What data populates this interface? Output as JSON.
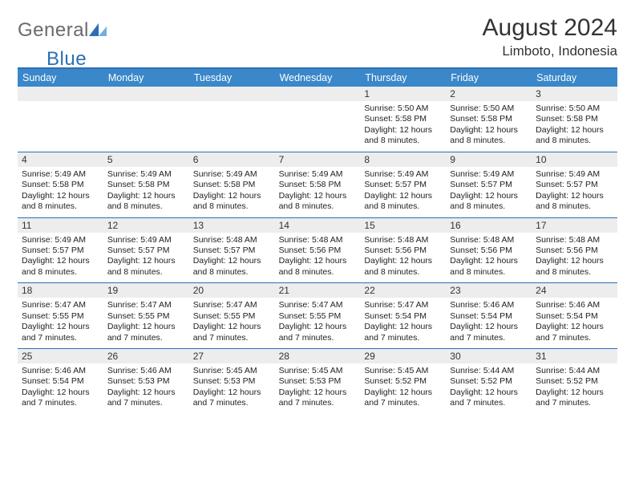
{
  "logo": {
    "general": "General",
    "blue": "Blue"
  },
  "title": "August 2024",
  "location": "Limboto, Indonesia",
  "colors": {
    "header_bg": "#3a87c9",
    "header_border": "#2c6fb5",
    "daynum_bg": "#ededed",
    "text": "#222222",
    "logo_gray": "#6a6a6a",
    "logo_blue": "#2c6fb5"
  },
  "day_labels": [
    "Sunday",
    "Monday",
    "Tuesday",
    "Wednesday",
    "Thursday",
    "Friday",
    "Saturday"
  ],
  "weeks": [
    {
      "nums": [
        "",
        "",
        "",
        "",
        "1",
        "2",
        "3"
      ],
      "sunrise": [
        "",
        "",
        "",
        "",
        "Sunrise: 5:50 AM",
        "Sunrise: 5:50 AM",
        "Sunrise: 5:50 AM"
      ],
      "sunset": [
        "",
        "",
        "",
        "",
        "Sunset: 5:58 PM",
        "Sunset: 5:58 PM",
        "Sunset: 5:58 PM"
      ],
      "daylight": [
        "",
        "",
        "",
        "",
        "Daylight: 12 hours and 8 minutes.",
        "Daylight: 12 hours and 8 minutes.",
        "Daylight: 12 hours and 8 minutes."
      ]
    },
    {
      "nums": [
        "4",
        "5",
        "6",
        "7",
        "8",
        "9",
        "10"
      ],
      "sunrise": [
        "Sunrise: 5:49 AM",
        "Sunrise: 5:49 AM",
        "Sunrise: 5:49 AM",
        "Sunrise: 5:49 AM",
        "Sunrise: 5:49 AM",
        "Sunrise: 5:49 AM",
        "Sunrise: 5:49 AM"
      ],
      "sunset": [
        "Sunset: 5:58 PM",
        "Sunset: 5:58 PM",
        "Sunset: 5:58 PM",
        "Sunset: 5:58 PM",
        "Sunset: 5:57 PM",
        "Sunset: 5:57 PM",
        "Sunset: 5:57 PM"
      ],
      "daylight": [
        "Daylight: 12 hours and 8 minutes.",
        "Daylight: 12 hours and 8 minutes.",
        "Daylight: 12 hours and 8 minutes.",
        "Daylight: 12 hours and 8 minutes.",
        "Daylight: 12 hours and 8 minutes.",
        "Daylight: 12 hours and 8 minutes.",
        "Daylight: 12 hours and 8 minutes."
      ]
    },
    {
      "nums": [
        "11",
        "12",
        "13",
        "14",
        "15",
        "16",
        "17"
      ],
      "sunrise": [
        "Sunrise: 5:49 AM",
        "Sunrise: 5:49 AM",
        "Sunrise: 5:48 AM",
        "Sunrise: 5:48 AM",
        "Sunrise: 5:48 AM",
        "Sunrise: 5:48 AM",
        "Sunrise: 5:48 AM"
      ],
      "sunset": [
        "Sunset: 5:57 PM",
        "Sunset: 5:57 PM",
        "Sunset: 5:57 PM",
        "Sunset: 5:56 PM",
        "Sunset: 5:56 PM",
        "Sunset: 5:56 PM",
        "Sunset: 5:56 PM"
      ],
      "daylight": [
        "Daylight: 12 hours and 8 minutes.",
        "Daylight: 12 hours and 8 minutes.",
        "Daylight: 12 hours and 8 minutes.",
        "Daylight: 12 hours and 8 minutes.",
        "Daylight: 12 hours and 8 minutes.",
        "Daylight: 12 hours and 8 minutes.",
        "Daylight: 12 hours and 8 minutes."
      ]
    },
    {
      "nums": [
        "18",
        "19",
        "20",
        "21",
        "22",
        "23",
        "24"
      ],
      "sunrise": [
        "Sunrise: 5:47 AM",
        "Sunrise: 5:47 AM",
        "Sunrise: 5:47 AM",
        "Sunrise: 5:47 AM",
        "Sunrise: 5:47 AM",
        "Sunrise: 5:46 AM",
        "Sunrise: 5:46 AM"
      ],
      "sunset": [
        "Sunset: 5:55 PM",
        "Sunset: 5:55 PM",
        "Sunset: 5:55 PM",
        "Sunset: 5:55 PM",
        "Sunset: 5:54 PM",
        "Sunset: 5:54 PM",
        "Sunset: 5:54 PM"
      ],
      "daylight": [
        "Daylight: 12 hours and 7 minutes.",
        "Daylight: 12 hours and 7 minutes.",
        "Daylight: 12 hours and 7 minutes.",
        "Daylight: 12 hours and 7 minutes.",
        "Daylight: 12 hours and 7 minutes.",
        "Daylight: 12 hours and 7 minutes.",
        "Daylight: 12 hours and 7 minutes."
      ]
    },
    {
      "nums": [
        "25",
        "26",
        "27",
        "28",
        "29",
        "30",
        "31"
      ],
      "sunrise": [
        "Sunrise: 5:46 AM",
        "Sunrise: 5:46 AM",
        "Sunrise: 5:45 AM",
        "Sunrise: 5:45 AM",
        "Sunrise: 5:45 AM",
        "Sunrise: 5:44 AM",
        "Sunrise: 5:44 AM"
      ],
      "sunset": [
        "Sunset: 5:54 PM",
        "Sunset: 5:53 PM",
        "Sunset: 5:53 PM",
        "Sunset: 5:53 PM",
        "Sunset: 5:52 PM",
        "Sunset: 5:52 PM",
        "Sunset: 5:52 PM"
      ],
      "daylight": [
        "Daylight: 12 hours and 7 minutes.",
        "Daylight: 12 hours and 7 minutes.",
        "Daylight: 12 hours and 7 minutes.",
        "Daylight: 12 hours and 7 minutes.",
        "Daylight: 12 hours and 7 minutes.",
        "Daylight: 12 hours and 7 minutes.",
        "Daylight: 12 hours and 7 minutes."
      ]
    }
  ]
}
